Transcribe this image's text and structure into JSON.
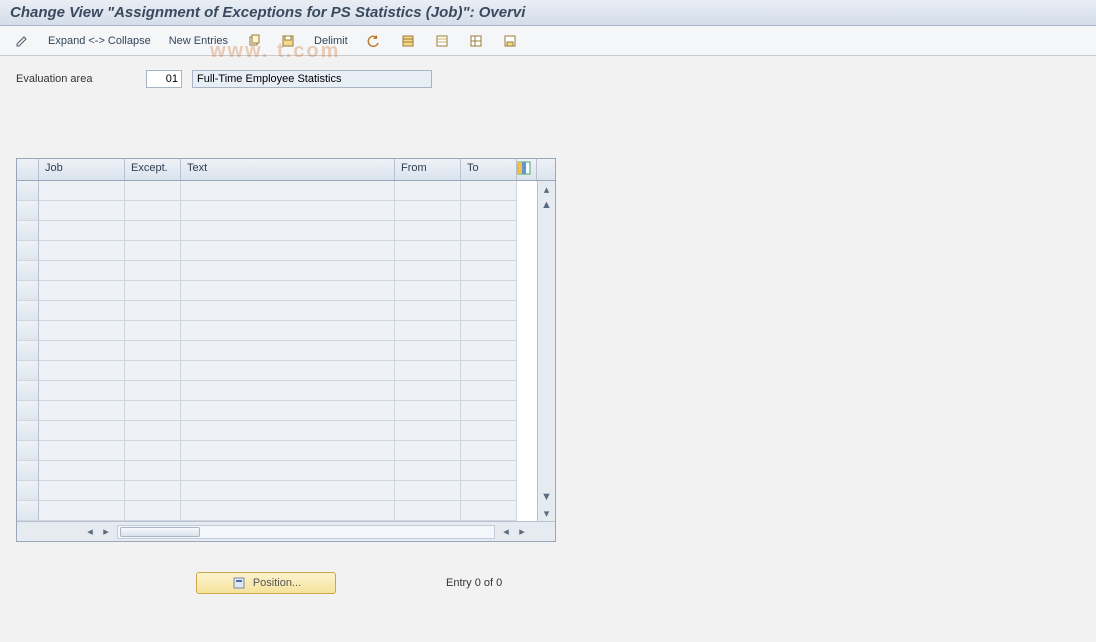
{
  "title": "Change View \"Assignment of Exceptions for PS Statistics (Job)\": Overvi",
  "toolbar": {
    "expand_collapse": "Expand <-> Collapse",
    "new_entries": "New Entries",
    "delimit": "Delimit"
  },
  "form": {
    "eval_area_label": "Evaluation area",
    "eval_area_code": "01",
    "eval_area_text": "Full-Time Employee Statistics"
  },
  "grid": {
    "columns": {
      "job": "Job",
      "except": "Except.",
      "text": "Text",
      "from": "From",
      "to": "To"
    },
    "row_count": 17
  },
  "footer": {
    "position_label": "Position...",
    "entry_text": "Entry 0 of 0"
  },
  "watermark": "www.                    t.com",
  "colors": {
    "header_grad_top": "#e9eef5",
    "header_grad_bot": "#d4dde9",
    "border": "#9aa7b8",
    "cell_bg": "#eef2f7"
  }
}
